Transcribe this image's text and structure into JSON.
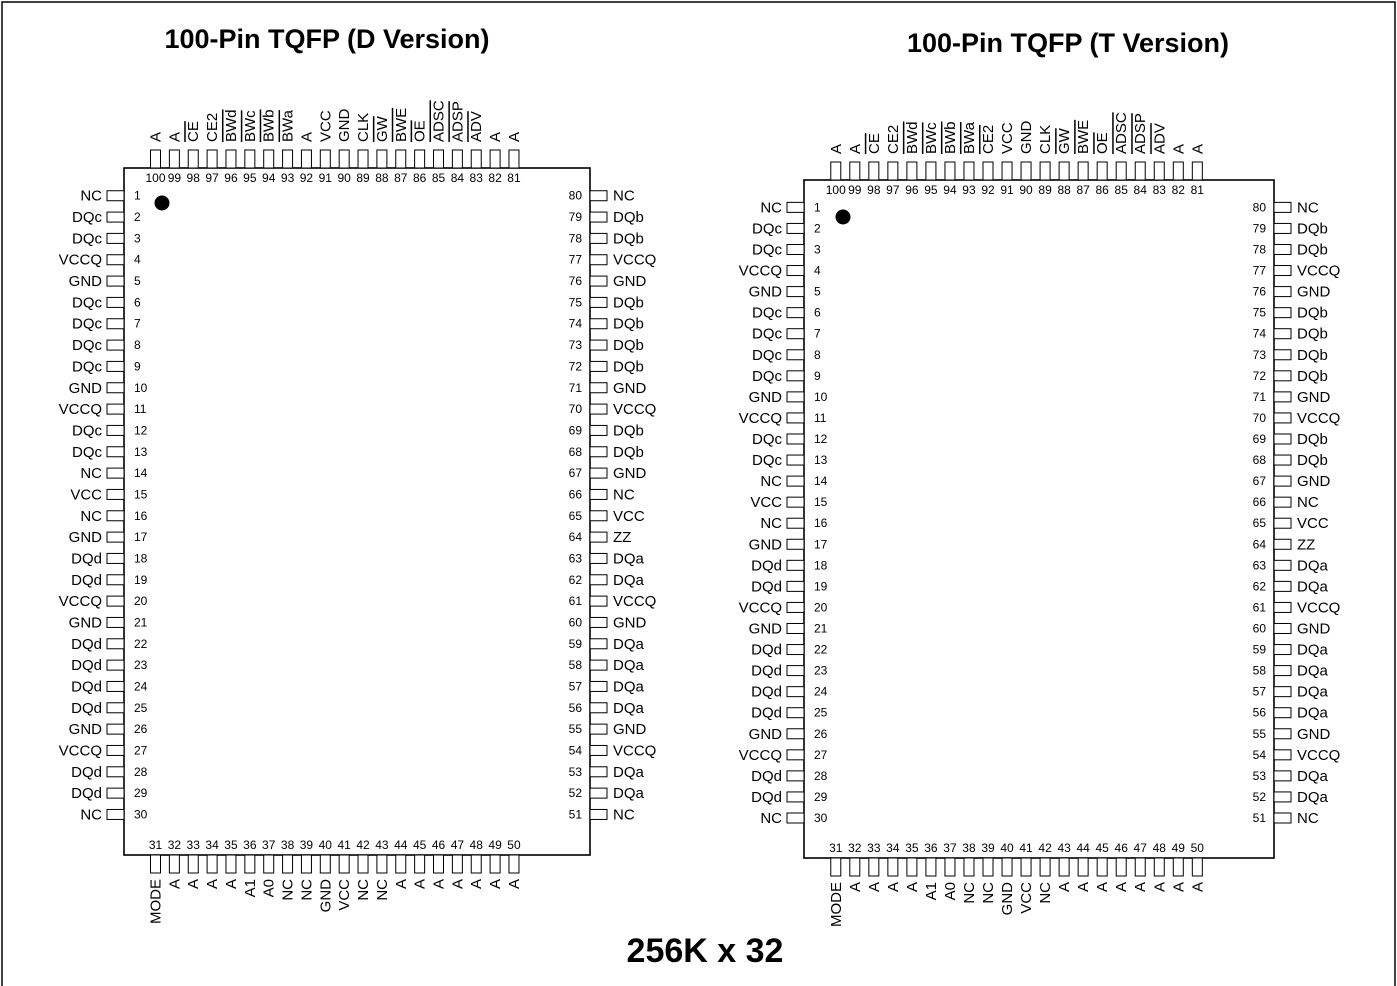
{
  "footer_title": "256K x 32",
  "packages": [
    {
      "title": "100-Pin TQFP (D Version)",
      "left_pins": [
        {
          "num": "1",
          "sig": "NC"
        },
        {
          "num": "2",
          "sig": "DQc"
        },
        {
          "num": "3",
          "sig": "DQc"
        },
        {
          "num": "4",
          "sig": "VCCQ"
        },
        {
          "num": "5",
          "sig": "GND"
        },
        {
          "num": "6",
          "sig": "DQc"
        },
        {
          "num": "7",
          "sig": "DQc"
        },
        {
          "num": "8",
          "sig": "DQc"
        },
        {
          "num": "9",
          "sig": "DQc"
        },
        {
          "num": "10",
          "sig": "GND"
        },
        {
          "num": "11",
          "sig": "VCCQ"
        },
        {
          "num": "12",
          "sig": "DQc"
        },
        {
          "num": "13",
          "sig": "DQc"
        },
        {
          "num": "14",
          "sig": "NC"
        },
        {
          "num": "15",
          "sig": "VCC"
        },
        {
          "num": "16",
          "sig": "NC"
        },
        {
          "num": "17",
          "sig": "GND"
        },
        {
          "num": "18",
          "sig": "DQd"
        },
        {
          "num": "19",
          "sig": "DQd"
        },
        {
          "num": "20",
          "sig": "VCCQ"
        },
        {
          "num": "21",
          "sig": "GND"
        },
        {
          "num": "22",
          "sig": "DQd"
        },
        {
          "num": "23",
          "sig": "DQd"
        },
        {
          "num": "24",
          "sig": "DQd"
        },
        {
          "num": "25",
          "sig": "DQd"
        },
        {
          "num": "26",
          "sig": "GND"
        },
        {
          "num": "27",
          "sig": "VCCQ"
        },
        {
          "num": "28",
          "sig": "DQd"
        },
        {
          "num": "29",
          "sig": "DQd"
        },
        {
          "num": "30",
          "sig": "NC"
        }
      ],
      "right_pins": [
        {
          "num": "80",
          "sig": "NC"
        },
        {
          "num": "79",
          "sig": "DQb"
        },
        {
          "num": "78",
          "sig": "DQb"
        },
        {
          "num": "77",
          "sig": "VCCQ"
        },
        {
          "num": "76",
          "sig": "GND"
        },
        {
          "num": "75",
          "sig": "DQb"
        },
        {
          "num": "74",
          "sig": "DQb"
        },
        {
          "num": "73",
          "sig": "DQb"
        },
        {
          "num": "72",
          "sig": "DQb"
        },
        {
          "num": "71",
          "sig": "GND"
        },
        {
          "num": "70",
          "sig": "VCCQ"
        },
        {
          "num": "69",
          "sig": "DQb"
        },
        {
          "num": "68",
          "sig": "DQb"
        },
        {
          "num": "67",
          "sig": "GND"
        },
        {
          "num": "66",
          "sig": "NC"
        },
        {
          "num": "65",
          "sig": "VCC"
        },
        {
          "num": "64",
          "sig": "ZZ"
        },
        {
          "num": "63",
          "sig": "DQa"
        },
        {
          "num": "62",
          "sig": "DQa"
        },
        {
          "num": "61",
          "sig": "VCCQ"
        },
        {
          "num": "60",
          "sig": "GND"
        },
        {
          "num": "59",
          "sig": "DQa"
        },
        {
          "num": "58",
          "sig": "DQa"
        },
        {
          "num": "57",
          "sig": "DQa"
        },
        {
          "num": "56",
          "sig": "DQa"
        },
        {
          "num": "55",
          "sig": "GND"
        },
        {
          "num": "54",
          "sig": "VCCQ"
        },
        {
          "num": "53",
          "sig": "DQa"
        },
        {
          "num": "52",
          "sig": "DQa"
        },
        {
          "num": "51",
          "sig": "NC"
        }
      ],
      "top_pins": [
        {
          "num": "100",
          "sig": "A"
        },
        {
          "num": "99",
          "sig": "A"
        },
        {
          "num": "98",
          "sig": "CE",
          "bar": true
        },
        {
          "num": "97",
          "sig": "CE2"
        },
        {
          "num": "96",
          "sig": "BWd",
          "bar": true
        },
        {
          "num": "95",
          "sig": "BWc",
          "bar": true
        },
        {
          "num": "94",
          "sig": "BWb",
          "bar": true
        },
        {
          "num": "93",
          "sig": "BWa",
          "bar": true
        },
        {
          "num": "92",
          "sig": "A"
        },
        {
          "num": "91",
          "sig": "VCC"
        },
        {
          "num": "90",
          "sig": "GND"
        },
        {
          "num": "89",
          "sig": "CLK"
        },
        {
          "num": "88",
          "sig": "GW",
          "bar": true
        },
        {
          "num": "87",
          "sig": "BWE",
          "bar": true
        },
        {
          "num": "86",
          "sig": "OE",
          "bar": true
        },
        {
          "num": "85",
          "sig": "ADSC",
          "bar": true
        },
        {
          "num": "84",
          "sig": "ADSP",
          "bar": true
        },
        {
          "num": "83",
          "sig": "ADV",
          "bar": true
        },
        {
          "num": "82",
          "sig": "A"
        },
        {
          "num": "81",
          "sig": "A"
        }
      ],
      "bottom_pins": [
        {
          "num": "31",
          "sig": "MODE"
        },
        {
          "num": "32",
          "sig": "A"
        },
        {
          "num": "33",
          "sig": "A"
        },
        {
          "num": "34",
          "sig": "A"
        },
        {
          "num": "35",
          "sig": "A"
        },
        {
          "num": "36",
          "sig": "A1"
        },
        {
          "num": "37",
          "sig": "A0"
        },
        {
          "num": "38",
          "sig": "NC"
        },
        {
          "num": "39",
          "sig": "NC"
        },
        {
          "num": "40",
          "sig": "GND"
        },
        {
          "num": "41",
          "sig": "VCC"
        },
        {
          "num": "42",
          "sig": "NC"
        },
        {
          "num": "43",
          "sig": "NC"
        },
        {
          "num": "44",
          "sig": "A"
        },
        {
          "num": "45",
          "sig": "A"
        },
        {
          "num": "46",
          "sig": "A"
        },
        {
          "num": "47",
          "sig": "A"
        },
        {
          "num": "48",
          "sig": "A"
        },
        {
          "num": "49",
          "sig": "A"
        },
        {
          "num": "50",
          "sig": "A"
        }
      ]
    },
    {
      "title": "100-Pin TQFP (T Version)",
      "left_pins": [
        {
          "num": "1",
          "sig": "NC"
        },
        {
          "num": "2",
          "sig": "DQc"
        },
        {
          "num": "3",
          "sig": "DQc"
        },
        {
          "num": "4",
          "sig": "VCCQ"
        },
        {
          "num": "5",
          "sig": "GND"
        },
        {
          "num": "6",
          "sig": "DQc"
        },
        {
          "num": "7",
          "sig": "DQc"
        },
        {
          "num": "8",
          "sig": "DQc"
        },
        {
          "num": "9",
          "sig": "DQc"
        },
        {
          "num": "10",
          "sig": "GND"
        },
        {
          "num": "11",
          "sig": "VCCQ"
        },
        {
          "num": "12",
          "sig": "DQc"
        },
        {
          "num": "13",
          "sig": "DQc"
        },
        {
          "num": "14",
          "sig": "NC"
        },
        {
          "num": "15",
          "sig": "VCC"
        },
        {
          "num": "16",
          "sig": "NC"
        },
        {
          "num": "17",
          "sig": "GND"
        },
        {
          "num": "18",
          "sig": "DQd"
        },
        {
          "num": "19",
          "sig": "DQd"
        },
        {
          "num": "20",
          "sig": "VCCQ"
        },
        {
          "num": "21",
          "sig": "GND"
        },
        {
          "num": "22",
          "sig": "DQd"
        },
        {
          "num": "23",
          "sig": "DQd"
        },
        {
          "num": "24",
          "sig": "DQd"
        },
        {
          "num": "25",
          "sig": "DQd"
        },
        {
          "num": "26",
          "sig": "GND"
        },
        {
          "num": "27",
          "sig": "VCCQ"
        },
        {
          "num": "28",
          "sig": "DQd"
        },
        {
          "num": "29",
          "sig": "DQd"
        },
        {
          "num": "30",
          "sig": "NC"
        }
      ],
      "right_pins": [
        {
          "num": "80",
          "sig": "NC"
        },
        {
          "num": "79",
          "sig": "DQb"
        },
        {
          "num": "78",
          "sig": "DQb"
        },
        {
          "num": "77",
          "sig": "VCCQ"
        },
        {
          "num": "76",
          "sig": "GND"
        },
        {
          "num": "75",
          "sig": "DQb"
        },
        {
          "num": "74",
          "sig": "DQb"
        },
        {
          "num": "73",
          "sig": "DQb"
        },
        {
          "num": "72",
          "sig": "DQb"
        },
        {
          "num": "71",
          "sig": "GND"
        },
        {
          "num": "70",
          "sig": "VCCQ"
        },
        {
          "num": "69",
          "sig": "DQb"
        },
        {
          "num": "68",
          "sig": "DQb"
        },
        {
          "num": "67",
          "sig": "GND"
        },
        {
          "num": "66",
          "sig": "NC"
        },
        {
          "num": "65",
          "sig": "VCC"
        },
        {
          "num": "64",
          "sig": "ZZ"
        },
        {
          "num": "63",
          "sig": "DQa"
        },
        {
          "num": "62",
          "sig": "DQa"
        },
        {
          "num": "61",
          "sig": "VCCQ"
        },
        {
          "num": "60",
          "sig": "GND"
        },
        {
          "num": "59",
          "sig": "DQa"
        },
        {
          "num": "58",
          "sig": "DQa"
        },
        {
          "num": "57",
          "sig": "DQa"
        },
        {
          "num": "56",
          "sig": "DQa"
        },
        {
          "num": "55",
          "sig": "GND"
        },
        {
          "num": "54",
          "sig": "VCCQ"
        },
        {
          "num": "53",
          "sig": "DQa"
        },
        {
          "num": "52",
          "sig": "DQa"
        },
        {
          "num": "51",
          "sig": "NC"
        }
      ],
      "top_pins": [
        {
          "num": "100",
          "sig": "A"
        },
        {
          "num": "99",
          "sig": "A"
        },
        {
          "num": "98",
          "sig": "CE",
          "bar": true
        },
        {
          "num": "97",
          "sig": "CE2"
        },
        {
          "num": "96",
          "sig": "BWd",
          "bar": true
        },
        {
          "num": "95",
          "sig": "BWc",
          "bar": true
        },
        {
          "num": "94",
          "sig": "BWb",
          "bar": true
        },
        {
          "num": "93",
          "sig": "BWa",
          "bar": true
        },
        {
          "num": "92",
          "sig": "CE2",
          "bar": true
        },
        {
          "num": "91",
          "sig": "VCC"
        },
        {
          "num": "90",
          "sig": "GND"
        },
        {
          "num": "89",
          "sig": "CLK"
        },
        {
          "num": "88",
          "sig": "GW",
          "bar": true
        },
        {
          "num": "87",
          "sig": "BWE",
          "bar": true
        },
        {
          "num": "86",
          "sig": "OE",
          "bar": true
        },
        {
          "num": "85",
          "sig": "ADSC",
          "bar": true
        },
        {
          "num": "84",
          "sig": "ADSP",
          "bar": true
        },
        {
          "num": "83",
          "sig": "ADV",
          "bar": true
        },
        {
          "num": "82",
          "sig": "A"
        },
        {
          "num": "81",
          "sig": "A"
        }
      ],
      "bottom_pins": [
        {
          "num": "31",
          "sig": "MODE"
        },
        {
          "num": "32",
          "sig": "A"
        },
        {
          "num": "33",
          "sig": "A"
        },
        {
          "num": "34",
          "sig": "A"
        },
        {
          "num": "35",
          "sig": "A"
        },
        {
          "num": "36",
          "sig": "A1"
        },
        {
          "num": "37",
          "sig": "A0"
        },
        {
          "num": "38",
          "sig": "NC"
        },
        {
          "num": "39",
          "sig": "NC"
        },
        {
          "num": "40",
          "sig": "GND"
        },
        {
          "num": "41",
          "sig": "VCC"
        },
        {
          "num": "42",
          "sig": "NC"
        },
        {
          "num": "43",
          "sig": "A"
        },
        {
          "num": "44",
          "sig": "A"
        },
        {
          "num": "45",
          "sig": "A"
        },
        {
          "num": "46",
          "sig": "A"
        },
        {
          "num": "47",
          "sig": "A"
        },
        {
          "num": "48",
          "sig": "A"
        },
        {
          "num": "49",
          "sig": "A"
        },
        {
          "num": "50",
          "sig": "A"
        }
      ]
    }
  ]
}
